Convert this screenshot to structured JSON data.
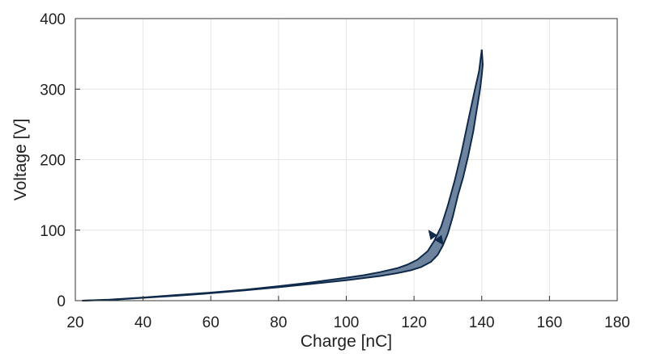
{
  "chart_data": {
    "type": "line",
    "xlabel": "Charge [nC]",
    "ylabel": "Voltage [V]",
    "xlim": [
      20,
      180
    ],
    "ylim": [
      0,
      400
    ],
    "xticks": [
      20,
      40,
      60,
      80,
      100,
      120,
      140,
      160,
      180
    ],
    "yticks": [
      0,
      100,
      200,
      300,
      400
    ],
    "grid": true,
    "fill_color": "#6e849e",
    "line_color": "#0f2a4a",
    "series": [
      {
        "x": [
          22,
          30,
          40,
          50,
          60,
          70,
          80,
          90,
          100,
          105,
          110,
          115,
          118,
          121,
          124,
          126,
          128,
          130,
          132,
          134,
          136,
          138,
          139.2,
          140
        ],
        "y": [
          0,
          1.5,
          4.5,
          8,
          11.5,
          15.5,
          20.5,
          26,
          32.5,
          36,
          40.5,
          46,
          51,
          58,
          70,
          85,
          105,
          135,
          170,
          210,
          255,
          300,
          325,
          356
        ]
      },
      {
        "x": [
          140,
          140.3,
          140,
          139.5,
          138.5,
          137.5,
          136,
          134.5,
          133,
          131.5,
          130,
          128.5,
          127,
          125,
          122,
          119,
          115,
          110,
          105,
          100,
          90,
          80,
          70,
          60,
          50,
          40,
          30,
          22
        ],
        "y": [
          356,
          335,
          320,
          300,
          270,
          240,
          205,
          175,
          150,
          120,
          95,
          78,
          65,
          55,
          47.5,
          43,
          39,
          35,
          32,
          29,
          24,
          19,
          14.5,
          10.5,
          7,
          4,
          1,
          0
        ]
      }
    ]
  }
}
